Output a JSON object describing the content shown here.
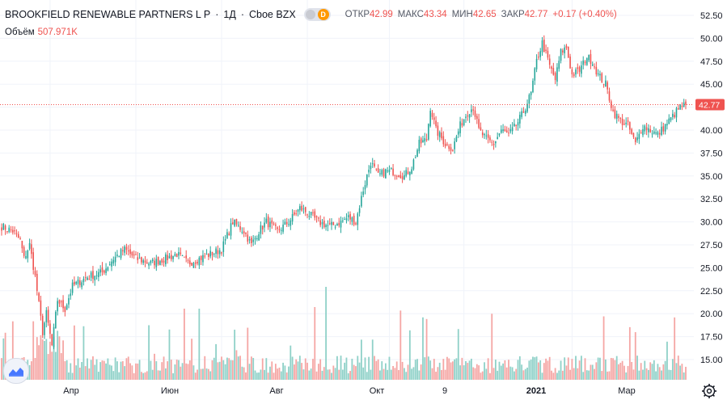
{
  "header": {
    "symbol": "BROOKFIELD RENEWABLE PARTNERS L P",
    "interval": "1Д",
    "exchange": "Cboe BZX",
    "source_badge": "D",
    "open_label": "ОТКР",
    "open_value": "42.99",
    "high_label": "МАКС",
    "high_value": "43.34",
    "low_label": "МИН",
    "low_value": "42.65",
    "close_label": "ЗАКР",
    "close_value": "42.77",
    "change_value": "+0.17 (+0.40%)"
  },
  "volume": {
    "label": "Объём",
    "value": "507.971K"
  },
  "last_price_label": "42.77",
  "colors": {
    "up": "#26a69a",
    "down": "#ef5350",
    "up_volume": "#8fd1c8",
    "down_volume": "#f5a6a4",
    "grid": "#f0f3fa",
    "last_price_line": "#ef5350"
  },
  "chart_data": {
    "type": "candlestick",
    "y_ticks": [
      "52.50",
      "50.00",
      "47.50",
      "45.00",
      "42.50",
      "40.00",
      "37.50",
      "35.00",
      "32.50",
      "30.00",
      "27.50",
      "25.00",
      "22.50",
      "20.00",
      "17.50",
      "15.00"
    ],
    "ylim": [
      12.8,
      53.5
    ],
    "x_ticks": [
      "Апр",
      "Июн",
      "Авг",
      "Окт",
      "9",
      "2021",
      "Мар"
    ],
    "last_close": 42.77,
    "close_anchors": [
      {
        "i": 0,
        "v": 29.5
      },
      {
        "i": 6,
        "v": 29.0
      },
      {
        "i": 10,
        "v": 28.0
      },
      {
        "i": 12,
        "v": 26.0
      },
      {
        "i": 15,
        "v": 27.5
      },
      {
        "i": 18,
        "v": 24.0
      },
      {
        "i": 22,
        "v": 18.0
      },
      {
        "i": 24,
        "v": 20.0
      },
      {
        "i": 27,
        "v": 16.5
      },
      {
        "i": 30,
        "v": 21.5
      },
      {
        "i": 34,
        "v": 20.5
      },
      {
        "i": 38,
        "v": 23.0
      },
      {
        "i": 46,
        "v": 24.0
      },
      {
        "i": 54,
        "v": 24.5
      },
      {
        "i": 60,
        "v": 26.0
      },
      {
        "i": 66,
        "v": 27.0
      },
      {
        "i": 72,
        "v": 26.0
      },
      {
        "i": 80,
        "v": 25.5
      },
      {
        "i": 88,
        "v": 26.0
      },
      {
        "i": 94,
        "v": 26.5
      },
      {
        "i": 100,
        "v": 25.5
      },
      {
        "i": 106,
        "v": 26.0
      },
      {
        "i": 112,
        "v": 26.5
      },
      {
        "i": 118,
        "v": 27.0
      },
      {
        "i": 124,
        "v": 30.0
      },
      {
        "i": 130,
        "v": 29.0
      },
      {
        "i": 134,
        "v": 27.5
      },
      {
        "i": 138,
        "v": 29.0
      },
      {
        "i": 142,
        "v": 30.0
      },
      {
        "i": 148,
        "v": 29.0
      },
      {
        "i": 154,
        "v": 30.0
      },
      {
        "i": 160,
        "v": 31.5
      },
      {
        "i": 164,
        "v": 31.0
      },
      {
        "i": 170,
        "v": 30.0
      },
      {
        "i": 176,
        "v": 29.5
      },
      {
        "i": 182,
        "v": 30.0
      },
      {
        "i": 186,
        "v": 30.5
      },
      {
        "i": 190,
        "v": 30.0
      },
      {
        "i": 194,
        "v": 33.5
      },
      {
        "i": 198,
        "v": 36.5
      },
      {
        "i": 202,
        "v": 35.0
      },
      {
        "i": 206,
        "v": 35.5
      },
      {
        "i": 210,
        "v": 35.5
      },
      {
        "i": 216,
        "v": 35.0
      },
      {
        "i": 220,
        "v": 36.0
      },
      {
        "i": 224,
        "v": 38.5
      },
      {
        "i": 228,
        "v": 39.0
      },
      {
        "i": 230,
        "v": 42.5
      },
      {
        "i": 233,
        "v": 40.0
      },
      {
        "i": 238,
        "v": 38.5
      },
      {
        "i": 242,
        "v": 38.0
      },
      {
        "i": 246,
        "v": 40.5
      },
      {
        "i": 250,
        "v": 42.0
      },
      {
        "i": 253,
        "v": 42.5
      },
      {
        "i": 256,
        "v": 40.0
      },
      {
        "i": 260,
        "v": 39.0
      },
      {
        "i": 264,
        "v": 38.5
      },
      {
        "i": 268,
        "v": 40.0
      },
      {
        "i": 272,
        "v": 39.5
      },
      {
        "i": 276,
        "v": 40.5
      },
      {
        "i": 280,
        "v": 42.0
      },
      {
        "i": 284,
        "v": 44.0
      },
      {
        "i": 287,
        "v": 47.5
      },
      {
        "i": 290,
        "v": 49.5
      },
      {
        "i": 294,
        "v": 47.0
      },
      {
        "i": 297,
        "v": 45.5
      },
      {
        "i": 300,
        "v": 48.5
      },
      {
        "i": 303,
        "v": 49.0
      },
      {
        "i": 306,
        "v": 46.0
      },
      {
        "i": 310,
        "v": 46.5
      },
      {
        "i": 314,
        "v": 48.0
      },
      {
        "i": 317,
        "v": 47.5
      },
      {
        "i": 320,
        "v": 46.0
      },
      {
        "i": 324,
        "v": 45.0
      },
      {
        "i": 328,
        "v": 42.0
      },
      {
        "i": 332,
        "v": 41.0
      },
      {
        "i": 336,
        "v": 40.5
      },
      {
        "i": 340,
        "v": 38.5
      },
      {
        "i": 344,
        "v": 40.5
      },
      {
        "i": 348,
        "v": 40.0
      },
      {
        "i": 352,
        "v": 39.5
      },
      {
        "i": 356,
        "v": 40.5
      },
      {
        "i": 360,
        "v": 41.5
      },
      {
        "i": 364,
        "v": 42.5
      },
      {
        "i": 367,
        "v": 42.77
      }
    ]
  }
}
